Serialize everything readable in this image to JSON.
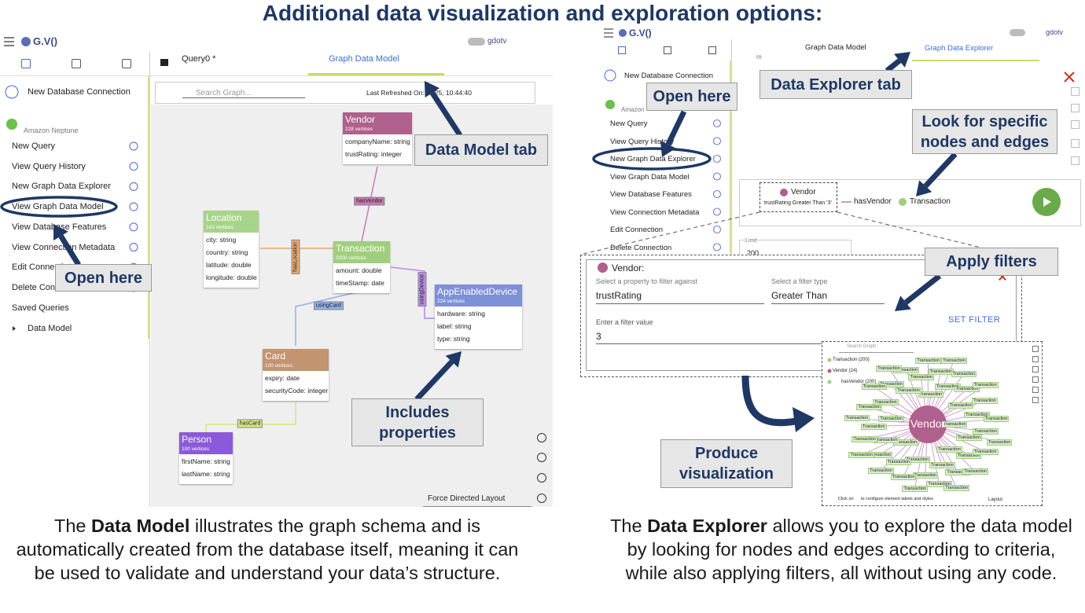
{
  "title": "Additional data visualization and exploration options:",
  "data_model": {
    "app_name": "G.V()",
    "user": "gdotv",
    "new_connection": "New Database Connection",
    "connection_type": "Amazon Neptune",
    "menu": [
      "New Query",
      "View Query History",
      "New Graph Data Explorer",
      "View Graph Data Model",
      "View Database Features",
      "View Connection Metadata",
      "Edit Connection",
      "Delete Connection"
    ],
    "saved_queries": "Saved Queries",
    "saved_item": "Data Model",
    "tabs": [
      "Query0 *",
      "Graph Data Model"
    ],
    "search_placeholder": "Search Graph...",
    "last_refreshed": [
      "Last Refreshed On: 2",
      "025, 10:44:40"
    ],
    "nodes": [
      {
        "label": "Vendor",
        "count": "228 vertices",
        "color": "#b0608d",
        "properties": [
          "companyName: string",
          "trustRating: integer"
        ]
      },
      {
        "label": "Location",
        "count": "141 vertices",
        "color": "#a8d48a",
        "properties": [
          "city: string",
          "country: string",
          "latitude: double",
          "longitude: double"
        ]
      },
      {
        "label": "Transaction",
        "count": "2000 vertices",
        "color": "#9fcf7e",
        "properties": [
          "amount: double",
          "timeStamp: date"
        ]
      },
      {
        "label": "AppEnabledDevice",
        "count": "224 vertices",
        "color": "#7e90d8",
        "properties": [
          "hardware: string",
          "label: string",
          "type: string"
        ]
      },
      {
        "label": "Card",
        "count": "100 vertices",
        "color": "#c39470",
        "properties": [
          "expiry: date",
          "securityCode: integer"
        ]
      },
      {
        "label": "Person",
        "count": "100 vertices",
        "color": "#8c5ad8",
        "properties": [
          "firstName: string",
          "lastName: string"
        ]
      }
    ],
    "edges": [
      {
        "label": "hasVendor",
        "color": "#c779b5"
      },
      {
        "label": "hasLocation",
        "color": "#e8a96b"
      },
      {
        "label": "usingCard",
        "color": "#8fb0e8"
      },
      {
        "label": "usingDevice",
        "color": "#b48ae0"
      },
      {
        "label": "hasCard",
        "color": "#d5e87a"
      }
    ],
    "layout_select": "Force Directed Layout",
    "callouts": [
      "Data Model tab",
      "Open here",
      "Includes properties"
    ],
    "caption": [
      "The ",
      "Data Model",
      " illustrates the graph schema and is automatically created from the database itself, meaning it can be used to validate and understand your data’s structure."
    ]
  },
  "data_explorer": {
    "app_name": "G.V()",
    "user": "gdotv",
    "new_connection": "New Database Connection",
    "connection_type": "Amazon",
    "menu": [
      "New Query",
      "View Query History",
      "New Graph Data Explorer",
      "View Graph Data Model",
      "View Database Features",
      "View Connection Metadata",
      "Edit Connection",
      "Delete Connection"
    ],
    "tabs": [
      "m",
      "Graph Data Model",
      "Graph Data Explorer"
    ],
    "query": {
      "vertex": "Vendor",
      "filter": "trustRating Greater Than '3'",
      "edge": "hasVendor",
      "target": "Transaction"
    },
    "limit": {
      "label": "Limit",
      "value": "200"
    },
    "filter_dialog": {
      "title": "Vendor:",
      "property_label": "Select a property to filter against",
      "property": "trustRating",
      "type_label": "Select a filter type",
      "type": "Greater Than",
      "value_label": "Enter a filter value",
      "value": "3",
      "button": "SET FILTER"
    },
    "mini_graph": {
      "search": "Search Graph",
      "legend": [
        "Transaction (200)",
        "Vendor (24)",
        "hasVendor (200)"
      ],
      "center": "Vendor",
      "node_label": "Transaction",
      "footer": [
        "Click on",
        "to configure element labels and styles"
      ],
      "layout": "Layout"
    },
    "callouts": [
      "Data Explorer tab",
      "Open here",
      "Look for specific nodes and edges",
      "Apply filters",
      "Produce visualization"
    ],
    "caption": [
      "The ",
      "Data Explorer",
      " allows you to explore the data model by looking for nodes and edges according to criteria, while also applying filters, all without using any code."
    ]
  }
}
